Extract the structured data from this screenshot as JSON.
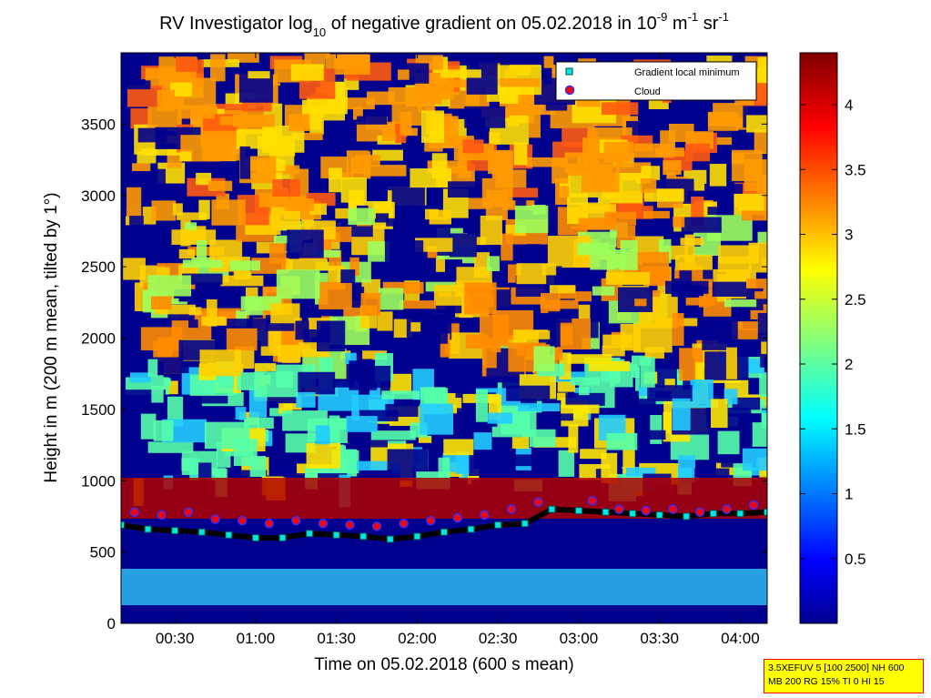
{
  "chart_data": {
    "type": "heatmap",
    "title": {
      "main": "RV Investigator log",
      "sub": "10",
      "rest": " of negative gradient on 05.02.2018 in 10",
      "exp1": "-9",
      "unit_m": " m",
      "exp2": "-1",
      "unit_sr": " sr",
      "exp3": "-1"
    },
    "xlabel": "Time on 05.02.2018 (600 s mean)",
    "ylabel": "Height in m (200 m mean, tilted by 1°)",
    "x_unit": "hh:mm",
    "xlim": [
      "00:10",
      "04:10"
    ],
    "ylim": [
      0,
      4000
    ],
    "x_ticks": [
      "00:30",
      "01:00",
      "01:30",
      "02:00",
      "02:30",
      "03:00",
      "03:30",
      "04:00"
    ],
    "y_ticks": [
      0,
      500,
      1000,
      1500,
      2000,
      2500,
      3000,
      3500
    ],
    "colorbar": {
      "colormap": "jet",
      "range": [
        0,
        4.4
      ],
      "ticks": [
        "0.5",
        "1",
        "1.5",
        "2",
        "2.5",
        "3",
        "3.5",
        "4"
      ]
    },
    "legend": {
      "placement": "top-right",
      "entries": [
        {
          "label": "Gradient local minimum",
          "marker": "square",
          "color": "#00e5e5"
        },
        {
          "label": "Cloud",
          "marker": "circle",
          "color": "#ff0000"
        }
      ]
    },
    "gradient_local_minimum": {
      "x": [
        "00:10",
        "00:20",
        "00:30",
        "00:40",
        "00:50",
        "01:00",
        "01:10",
        "01:20",
        "01:30",
        "01:40",
        "01:50",
        "02:00",
        "02:10",
        "02:20",
        "02:30",
        "02:40",
        "02:50",
        "03:00",
        "03:10",
        "03:20",
        "03:30",
        "03:40",
        "03:50",
        "04:00",
        "04:10"
      ],
      "y": [
        690,
        660,
        650,
        640,
        620,
        600,
        600,
        630,
        620,
        610,
        590,
        610,
        640,
        660,
        690,
        700,
        800,
        790,
        780,
        770,
        760,
        750,
        770,
        770,
        780
      ]
    },
    "cloud": {
      "x": [
        "00:15",
        "00:25",
        "00:35",
        "00:45",
        "00:55",
        "01:05",
        "01:15",
        "01:25",
        "01:35",
        "01:45",
        "01:55",
        "02:05",
        "02:15",
        "02:25",
        "02:35",
        "02:45",
        "03:05",
        "03:15",
        "03:25",
        "03:35",
        "03:45",
        "03:55",
        "04:05"
      ],
      "y": [
        780,
        760,
        780,
        730,
        720,
        700,
        720,
        700,
        690,
        680,
        700,
        720,
        740,
        760,
        800,
        850,
        860,
        800,
        790,
        800,
        780,
        800,
        830
      ]
    }
  },
  "info_box": {
    "line1": "3.5XEFUV 5 [100 2500] NH 600",
    "line2": "MB 200 RG 15% TI 0 HI 15"
  }
}
